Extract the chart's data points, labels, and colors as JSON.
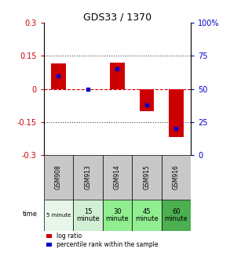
{
  "title": "GDS33 / 1370",
  "samples": [
    "GSM908",
    "GSM913",
    "GSM914",
    "GSM915",
    "GSM916"
  ],
  "time_labels": [
    "5 minute",
    "15\nminute",
    "30\nminute",
    "45\nminute",
    "60\nminute"
  ],
  "log_ratios": [
    0.115,
    0.0,
    0.12,
    -0.1,
    -0.22
  ],
  "percentile_ranks": [
    60,
    50,
    65,
    38,
    20
  ],
  "bar_color": "#cc0000",
  "percentile_color": "#0000cc",
  "ylim": [
    -0.3,
    0.3
  ],
  "y2lim": [
    0,
    100
  ],
  "yticks": [
    -0.3,
    -0.15,
    0,
    0.15,
    0.3
  ],
  "y2ticks": [
    0,
    25,
    50,
    75,
    100
  ],
  "hline_color": "#cc0000",
  "dotted_color": "#444444",
  "background_plot": "#ffffff",
  "background_table_gsm": "#c8c8c8",
  "time_bg_colors": [
    "#e8f5e9",
    "#d0efd4",
    "#90ee90",
    "#90ee90",
    "#4caf50"
  ],
  "legend_log": "log ratio",
  "legend_pct": "percentile rank within the sample"
}
